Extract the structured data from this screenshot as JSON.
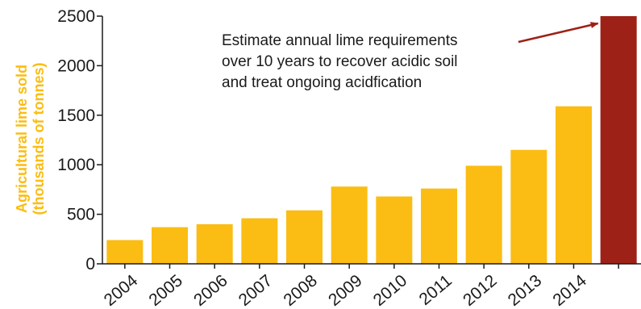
{
  "chart_data": {
    "type": "bar",
    "title": "",
    "xlabel": "",
    "ylabel_lines": [
      "Agricultural lime sold",
      "(thousands of tonnes)"
    ],
    "categories": [
      "2004",
      "2005",
      "2006",
      "2007",
      "2008",
      "2009",
      "2010",
      "2011",
      "2012",
      "2013",
      "2014",
      ""
    ],
    "values": [
      240,
      370,
      400,
      460,
      540,
      780,
      680,
      760,
      990,
      1150,
      1590,
      2500
    ],
    "bar_colors": [
      "#fbbd13",
      "#fbbd13",
      "#fbbd13",
      "#fbbd13",
      "#fbbd13",
      "#fbbd13",
      "#fbbd13",
      "#fbbd13",
      "#fbbd13",
      "#fbbd13",
      "#fbbd13",
      "#9e2117"
    ],
    "ylim": [
      0,
      2500
    ],
    "yticks": [
      0,
      500,
      1000,
      1500,
      2000,
      2500
    ],
    "ylabel_color": "#fbbd13",
    "grid": false,
    "annotation": {
      "lines": [
        "Estimate annual lime requirements",
        "over 10 years to recover acidic soil",
        "and treat ongoing acidfication"
      ],
      "target_category_index": 11,
      "arrow_color": "#9e2117"
    }
  }
}
